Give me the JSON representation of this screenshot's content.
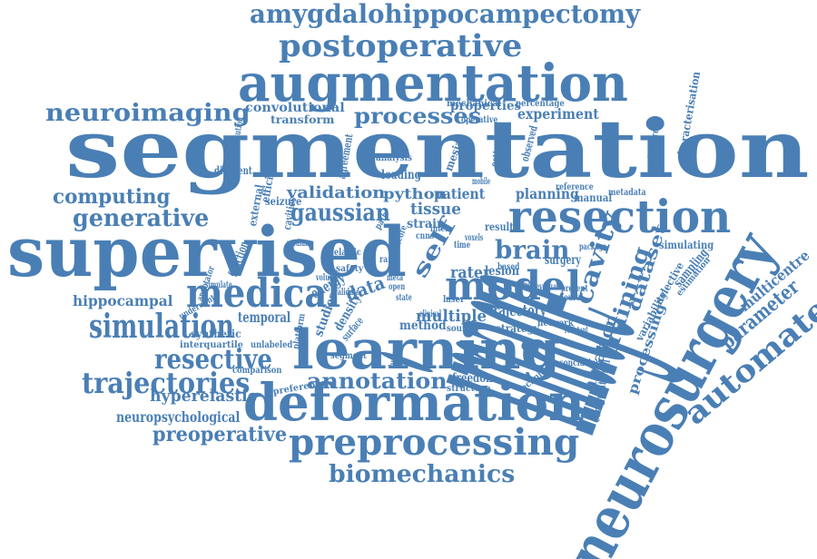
{
  "word_color": "#4a7fb5",
  "words": [
    {
      "text": "amygdalohippocampectomy"
    },
    {
      "text": "postoperative"
    },
    {
      "text": "augmentation"
    },
    {
      "text": "neuroimaging"
    },
    {
      "text": "segmentation"
    },
    {
      "text": "supervised"
    },
    {
      "text": "computing"
    },
    {
      "text": "generative"
    },
    {
      "text": "resection"
    },
    {
      "text": "validation"
    },
    {
      "text": "gaussian"
    },
    {
      "text": "image"
    },
    {
      "text": "medical"
    },
    {
      "text": "simulation"
    },
    {
      "text": "learning"
    },
    {
      "text": "model"
    },
    {
      "text": "brain"
    },
    {
      "text": "training"
    },
    {
      "text": "cavity"
    },
    {
      "text": "dataset"
    },
    {
      "text": "ablation"
    },
    {
      "text": "processing"
    },
    {
      "text": "resective"
    },
    {
      "text": "trajectories"
    },
    {
      "text": "deformation"
    },
    {
      "text": "annotation"
    },
    {
      "text": "hyperelastic"
    },
    {
      "text": "neuropsychological"
    },
    {
      "text": "preoperative"
    },
    {
      "text": "preprocessing"
    },
    {
      "text": "biomechanics"
    },
    {
      "text": "neurosurgery"
    },
    {
      "text": "automated"
    },
    {
      "text": "parameter"
    },
    {
      "text": "multicentre"
    },
    {
      "text": "processes"
    },
    {
      "text": "properties"
    },
    {
      "text": "experiment"
    },
    {
      "text": "convolutional"
    },
    {
      "text": "transform"
    },
    {
      "text": "mechanical"
    },
    {
      "text": "percentage"
    },
    {
      "text": "characterisation"
    },
    {
      "text": "standardize"
    },
    {
      "text": "python"
    },
    {
      "text": "patient"
    },
    {
      "text": "tissue"
    },
    {
      "text": "strain"
    },
    {
      "text": "planning"
    },
    {
      "text": "manual"
    },
    {
      "text": "reference"
    },
    {
      "text": "metadata"
    },
    {
      "text": "self"
    },
    {
      "text": "surgery"
    },
    {
      "text": "rater"
    },
    {
      "text": "lesion"
    },
    {
      "text": "data"
    },
    {
      "text": "energy"
    },
    {
      "text": "multiple"
    },
    {
      "text": "method"
    },
    {
      "text": "trajectory"
    },
    {
      "text": "strategy"
    },
    {
      "text": "network"
    },
    {
      "text": "hippocampal"
    },
    {
      "text": "temporal"
    },
    {
      "text": "synthetic"
    },
    {
      "text": "function"
    },
    {
      "text": "interquartile"
    },
    {
      "text": "unlabeled"
    },
    {
      "text": "comparison"
    },
    {
      "text": "preference"
    },
    {
      "text": "studies"
    },
    {
      "text": "density"
    },
    {
      "text": "surface"
    },
    {
      "text": "segment"
    },
    {
      "text": "freedom"
    },
    {
      "text": "structure"
    },
    {
      "text": "technique"
    },
    {
      "text": "conclusion"
    },
    {
      "text": "computational"
    },
    {
      "text": "variability"
    },
    {
      "text": "selective"
    },
    {
      "text": "sampling"
    },
    {
      "text": "simulating"
    },
    {
      "text": "estimation"
    },
    {
      "text": "loading"
    },
    {
      "text": "observed"
    },
    {
      "text": "estimate"
    },
    {
      "text": "mesial"
    },
    {
      "text": "analysis"
    },
    {
      "text": "agreement"
    },
    {
      "text": "different"
    },
    {
      "text": "efficient"
    },
    {
      "text": "external"
    },
    {
      "text": "seizure"
    },
    {
      "text": "cavities"
    },
    {
      "text": "result"
    },
    {
      "text": "based"
    },
    {
      "text": "expert"
    },
    {
      "text": "evaluate"
    },
    {
      "text": "present"
    },
    {
      "text": "package"
    },
    {
      "text": "neural"
    },
    {
      "text": "clinical"
    },
    {
      "text": "laser"
    },
    {
      "text": "source"
    },
    {
      "text": "resistant"
    },
    {
      "text": "human"
    },
    {
      "text": "operative"
    },
    {
      "text": "elastic"
    },
    {
      "text": "safety"
    },
    {
      "text": "validate"
    },
    {
      "text": "volume"
    },
    {
      "text": "platform"
    },
    {
      "text": "underwent"
    },
    {
      "text": "simulate"
    },
    {
      "text": "annotator"
    },
    {
      "text": "institution"
    },
    {
      "text": "cnns"
    },
    {
      "text": "inter"
    },
    {
      "text": "path"
    },
    {
      "text": "score"
    },
    {
      "text": "median"
    },
    {
      "text": "open"
    },
    {
      "text": "meta"
    },
    {
      "text": "time"
    },
    {
      "text": "voxels"
    },
    {
      "text": "mobile"
    },
    {
      "text": "rare"
    },
    {
      "text": "state"
    }
  ]
}
